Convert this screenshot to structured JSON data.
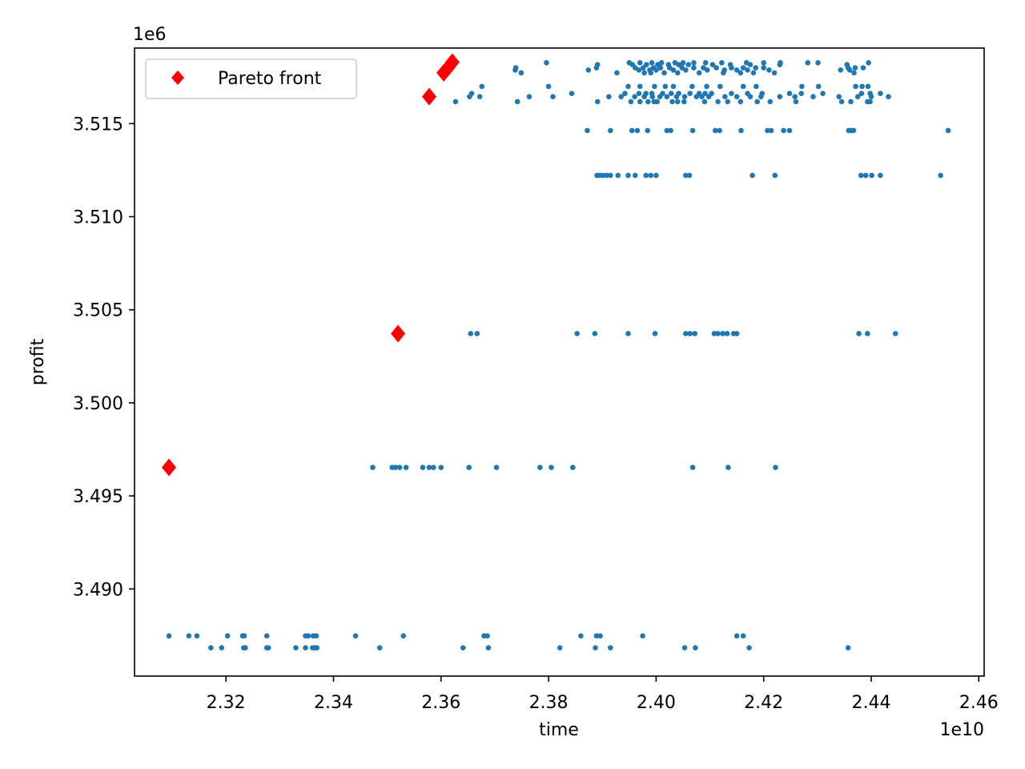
{
  "chart_data": {
    "type": "scatter",
    "xlabel": "time",
    "ylabel": "profit",
    "x_offset_label": "1e10",
    "y_offset_label": "1e6",
    "x_scale": 10000000000,
    "y_scale": 1000000,
    "xlim": [
      2.303,
      2.461
    ],
    "ylim": [
      3.48532,
      3.51906
    ],
    "xticks": [
      {
        "value": 2.32,
        "label": "2.32"
      },
      {
        "value": 2.34,
        "label": "2.34"
      },
      {
        "value": 2.36,
        "label": "2.36"
      },
      {
        "value": 2.38,
        "label": "2.38"
      },
      {
        "value": 2.4,
        "label": "2.40"
      },
      {
        "value": 2.42,
        "label": "2.42"
      },
      {
        "value": 2.44,
        "label": "2.44"
      },
      {
        "value": 2.46,
        "label": "2.46"
      }
    ],
    "yticks": [
      {
        "value": 3.49,
        "label": "3.490"
      },
      {
        "value": 3.495,
        "label": "3.495"
      },
      {
        "value": 3.5,
        "label": "3.500"
      },
      {
        "value": 3.505,
        "label": "3.505"
      },
      {
        "value": 3.51,
        "label": "3.510"
      },
      {
        "value": 3.515,
        "label": "3.515"
      }
    ],
    "grid": false,
    "legend": {
      "placement": "top-left",
      "entries": [
        {
          "label": "Pareto front",
          "color": "#ff0000",
          "marker": "diamond"
        }
      ]
    },
    "series": [
      {
        "color": "#1f77b4",
        "marker": "circle",
        "rows": [
          {
            "y": 3.48748,
            "x": [
              2.3094,
              2.3131,
              2.3146,
              2.3203,
              2.3231,
              2.3234,
              2.3276,
              2.3348,
              2.3353,
              2.3362,
              2.3368,
              2.3441,
              2.353,
              2.368,
              2.3686,
              2.386,
              2.3889,
              2.3896,
              2.3975,
              2.415,
              2.4162
            ]
          },
          {
            "y": 3.48684,
            "x": [
              2.3172,
              2.3192,
              2.3233,
              2.3236,
              2.3276,
              2.3279,
              2.333,
              2.3348,
              2.3361,
              2.3366,
              2.3369,
              2.3486,
              2.3641,
              2.3688,
              2.3821,
              2.3887,
              2.3915,
              2.4053,
              2.4073,
              2.4173,
              2.4357
            ]
          },
          {
            "y": 3.49653,
            "x": [
              2.3473,
              2.3509,
              2.3515,
              2.3523,
              2.3535,
              2.3566,
              2.3578,
              2.3586,
              2.36,
              2.3652,
              2.3703,
              2.3784,
              2.3805,
              2.3845,
              2.4068,
              2.4134,
              2.4222
            ]
          },
          {
            "y": 3.50372,
            "x": [
              2.3655,
              2.3667,
              2.3853,
              2.3886,
              2.3948,
              2.3998,
              2.4055,
              2.4063,
              2.4072,
              2.4108,
              2.4115,
              2.4124,
              2.4132,
              2.4144,
              2.415,
              2.4377,
              2.4393,
              2.4445
            ]
          },
          {
            "y": 3.51222,
            "x": [
              2.389,
              2.3895,
              2.3901,
              2.3908,
              2.3915,
              2.3929,
              2.3948,
              2.3961,
              2.3981,
              2.399,
              2.4,
              2.4055,
              2.4062,
              2.4179,
              2.4221,
              2.4381,
              2.439,
              2.4401,
              2.4417,
              2.4529
            ]
          },
          {
            "y": 3.51463,
            "x": [
              2.3872,
              2.3915,
              2.3955,
              2.3965,
              2.3984,
              2.402,
              2.4027,
              2.4068,
              2.411,
              2.4118,
              2.4158,
              2.4207,
              2.4214,
              2.4237,
              2.4248,
              2.4358,
              2.4363,
              2.4367,
              2.4543
            ]
          },
          {
            "y": 3.51618,
            "x": [
              2.3627,
              2.3742,
              2.3891,
              2.3953,
              2.397,
              2.3985,
              2.3996,
              2.4002,
              2.403,
              2.404,
              2.4052,
              2.409,
              2.4115,
              2.4133,
              2.4157,
              2.4188,
              2.4212,
              2.426,
              2.4345,
              2.4362,
              2.4393,
              2.4398
            ]
          },
          {
            "y": 3.51645,
            "x": [
              2.3653,
              2.3672,
              2.3764,
              2.3808,
              2.3912,
              2.3935,
              2.396,
              2.3978,
              2.3993,
              2.4007,
              2.402,
              2.4038,
              2.4053,
              2.4075,
              2.4085,
              2.4098,
              2.4128,
              2.415,
              2.4175,
              2.4195,
              2.423,
              2.4258,
              2.4292,
              2.434,
              2.4375,
              2.44,
              2.4432
            ]
          },
          {
            "y": 3.51662,
            "x": [
              2.3657,
              2.3843,
              2.3942,
              2.3968,
              2.3981,
              2.3992,
              2.4012,
              2.4028,
              2.4042,
              2.4063,
              2.408,
              2.4091,
              2.4103,
              2.414,
              2.417,
              2.4197,
              2.4248,
              2.427,
              2.431,
              2.4382,
              2.4398,
              2.4417
            ]
          },
          {
            "y": 3.517,
            "x": [
              2.3676,
              2.38,
              2.3948,
              2.397,
              2.3997,
              2.4017,
              2.4032,
              2.4067,
              2.4094,
              2.4119,
              2.4162,
              2.4186,
              2.4271,
              2.4302,
              2.4371,
              2.4383,
              2.4394
            ]
          },
          {
            "y": 3.51773,
            "x": [
              2.3749,
              2.3927,
              2.3978,
              2.399,
              2.4015,
              2.404,
              2.408,
              2.4125,
              2.4157,
              2.4181,
              2.422,
              2.4368
            ]
          },
          {
            "y": 3.51788,
            "x": [
              2.3738,
              2.3874,
              2.3968,
              2.3988,
              2.4,
              2.4032,
              2.4055,
              2.4095,
              2.4127,
              2.415,
              2.417,
              2.421,
              2.4343,
              2.436
            ]
          },
          {
            "y": 3.518,
            "x": [
              2.3739,
              2.3889,
              2.3961,
              2.3976,
              2.3995,
              2.4008,
              2.4025,
              2.4048,
              2.407,
              2.4088,
              2.4112,
              2.414,
              2.4162,
              2.4185,
              2.42,
              2.4357,
              2.437,
              2.4385
            ]
          },
          {
            "y": 3.51817,
            "x": [
              2.3891,
              2.3956,
              2.3982,
              2.4003,
              2.4023,
              2.4042,
              2.406,
              2.4105,
              2.4138,
              2.4175,
              2.423,
              2.4355
            ]
          },
          {
            "y": 3.51827,
            "x": [
              2.3796,
              2.395,
              2.397,
              2.3992,
              2.401,
              2.4035,
              2.405,
              2.407,
              2.4092,
              2.4122,
              2.4168,
              2.42,
              2.4231,
              2.4282,
              2.4301,
              2.4395
            ]
          }
        ]
      },
      {
        "name": "Pareto front",
        "color": "#ff0000",
        "marker": "diamond",
        "points": [
          {
            "x": 2.3094,
            "y": 3.49653
          },
          {
            "x": 2.352,
            "y": 3.50372
          },
          {
            "x": 2.3578,
            "y": 3.51645
          },
          {
            "x": 2.3605,
            "y": 3.51773
          },
          {
            "x": 2.3613,
            "y": 3.518
          },
          {
            "x": 2.3621,
            "y": 3.5183
          }
        ]
      }
    ]
  }
}
